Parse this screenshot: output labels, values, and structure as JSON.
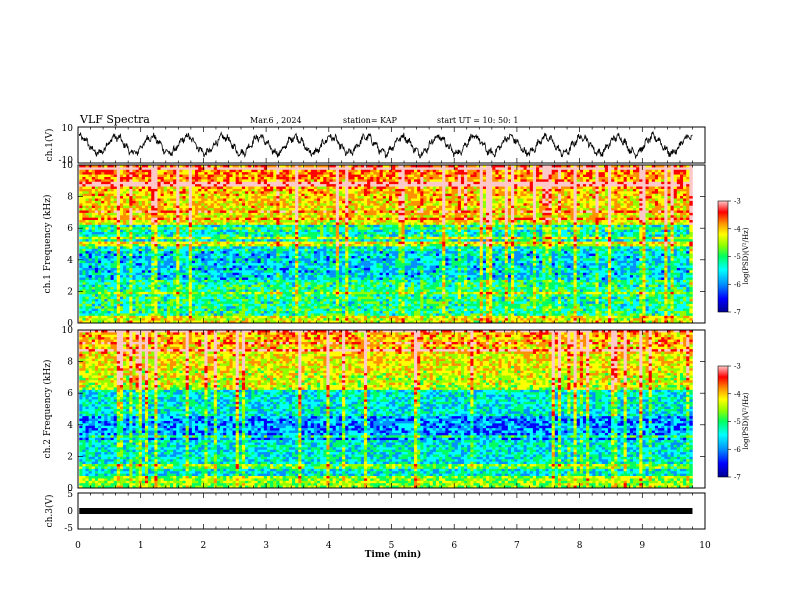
{
  "header": {
    "title": "VLF Spectra",
    "date": "Mar.6 , 2024",
    "station": "station= KAP",
    "start": "start UT = 10: 50: 1"
  },
  "colors": {
    "background": "#ffffff",
    "trace": "#000000",
    "colormap": [
      "#000090",
      "#0000ff",
      "#0090ff",
      "#00ffff",
      "#00ff60",
      "#90ff00",
      "#ffff00",
      "#ff9000",
      "#ff0000",
      "#ffc8c8"
    ]
  },
  "chart_data": [
    {
      "id": "ch1-waveform",
      "type": "line",
      "ylabel": "ch.1(V)",
      "ylim": [
        -10,
        10
      ],
      "yticks": [
        "10",
        "-10"
      ],
      "xlim": [
        0,
        10
      ],
      "description_signal": "oscillating waveform with ~17 cycles over 9.8 min, amplitude ~5 V",
      "trace_end_min": 9.8
    },
    {
      "id": "ch1-spectrogram",
      "type": "heatmap",
      "ylabel": "ch.1 Frequency (kHz)",
      "ylim": [
        0,
        10
      ],
      "yticks": [
        "0",
        "2",
        "4",
        "6",
        "8",
        "10"
      ],
      "xlim": [
        0,
        10
      ],
      "data_end_min": 9.8,
      "colorbar": {
        "label": "log(PSD)(V²/Hz)",
        "range": [
          -7,
          -3
        ],
        "ticks": [
          "-3",
          "-4",
          "-5",
          "-6",
          "-7"
        ]
      }
    },
    {
      "id": "ch2-spectrogram",
      "type": "heatmap",
      "ylabel": "ch.2 Frequency (kHz)",
      "ylim": [
        0,
        10
      ],
      "yticks": [
        "0",
        "2",
        "4",
        "6",
        "8",
        "10"
      ],
      "xlim": [
        0,
        10
      ],
      "data_end_min": 9.8,
      "colorbar": {
        "label": "log(PSD)(V²/Hz)",
        "range": [
          -7,
          -3
        ],
        "ticks": [
          "-3",
          "-4",
          "-5",
          "-6",
          "-7"
        ]
      }
    },
    {
      "id": "ch3-waveform",
      "type": "line",
      "ylabel": "ch.3(V)",
      "ylim": [
        -5,
        5
      ],
      "yticks": [
        "5",
        "0",
        "-5"
      ],
      "xlim": [
        0,
        10
      ],
      "xlabel": "Time (min)",
      "xticks": [
        "0",
        "1",
        "2",
        "3",
        "4",
        "5",
        "6",
        "7",
        "8",
        "9",
        "10"
      ],
      "trace_end_min": 9.8
    }
  ]
}
